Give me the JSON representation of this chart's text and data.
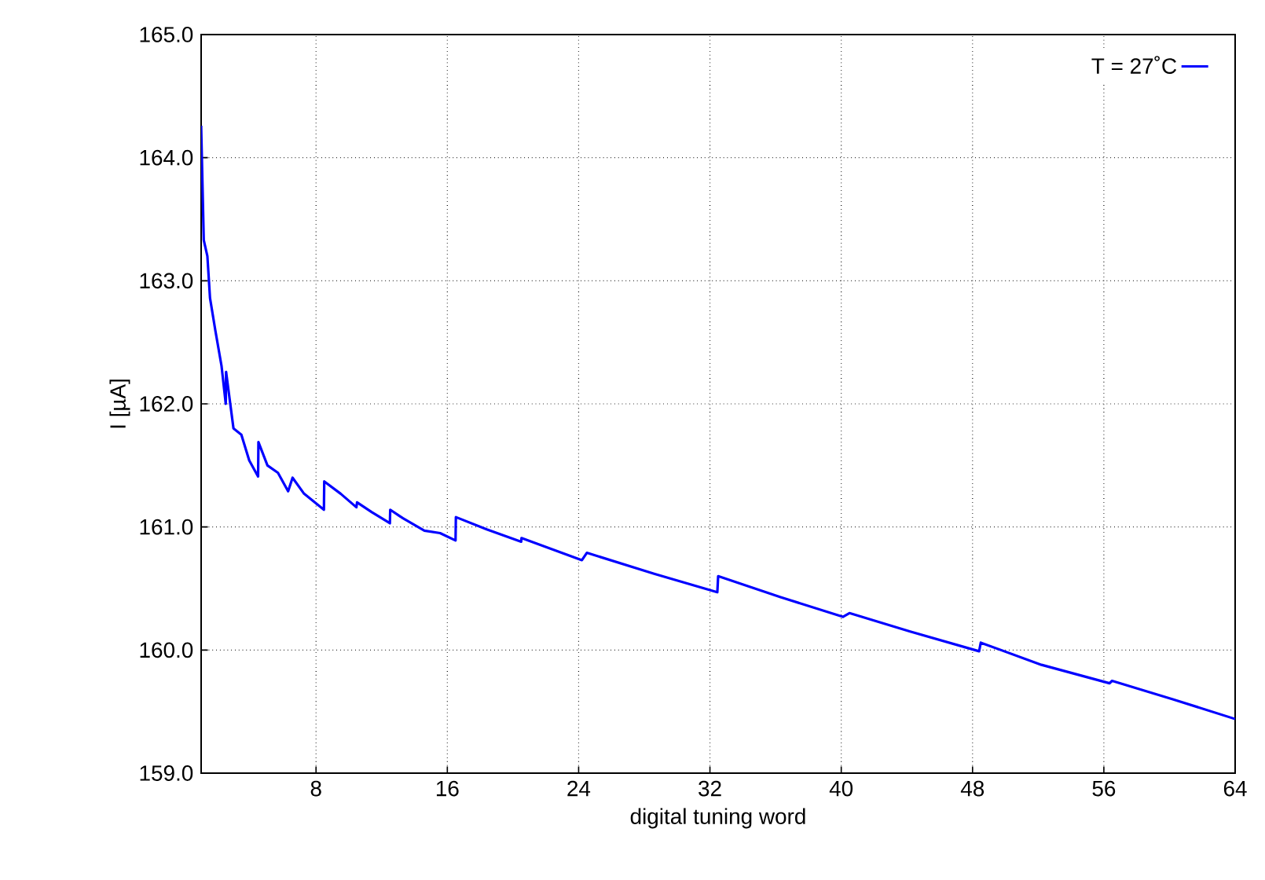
{
  "chart_data": {
    "type": "line",
    "xlabel": "digital tuning word",
    "ylabel": "I [µA]",
    "xlim": [
      1,
      64
    ],
    "ylim": [
      159,
      165
    ],
    "xticks": [
      8,
      16,
      24,
      32,
      40,
      48,
      56,
      64
    ],
    "yticks": [
      {
        "value": 159,
        "label": "159.0"
      },
      {
        "value": 160,
        "label": "160.0"
      },
      {
        "value": 161,
        "label": "161.0"
      },
      {
        "value": 162,
        "label": "162.0"
      },
      {
        "value": 163,
        "label": "163.0"
      },
      {
        "value": 164,
        "label": "164.0"
      },
      {
        "value": 165,
        "label": "165.0"
      }
    ],
    "grid": true,
    "legend": "top right",
    "series": [
      {
        "name": "T = 27˚C",
        "color": "#0000ff",
        "x": [
          1,
          1.16,
          1.38,
          1.54,
          1.86,
          2.24,
          2.5,
          2.52,
          2.97,
          3.45,
          3.93,
          4.47,
          4.49,
          5.04,
          5.68,
          6.3,
          6.57,
          7.27,
          8.48,
          8.5,
          9.5,
          10.46,
          10.5,
          11.4,
          12.5,
          12.52,
          13.3,
          14.6,
          15.56,
          16.5,
          16.52,
          18.4,
          20.5,
          20.52,
          24.2,
          24.5,
          28.6,
          32.45,
          32.5,
          36.3,
          40.1,
          40.5,
          44.2,
          48.4,
          48.5,
          52.2,
          56.35,
          56.5,
          60.2,
          64
        ],
        "values": [
          164.26,
          163.33,
          163.2,
          162.86,
          162.6,
          162.31,
          162.0,
          162.26,
          161.8,
          161.75,
          161.54,
          161.41,
          161.69,
          161.5,
          161.44,
          161.29,
          161.4,
          161.27,
          161.14,
          161.37,
          161.27,
          161.16,
          161.2,
          161.12,
          161.03,
          161.14,
          161.07,
          160.97,
          160.95,
          160.89,
          161.08,
          160.98,
          160.88,
          160.91,
          160.73,
          160.79,
          160.62,
          160.47,
          160.6,
          160.43,
          160.27,
          160.3,
          160.15,
          159.99,
          160.06,
          159.88,
          159.73,
          159.75,
          159.6,
          159.44
        ]
      }
    ]
  }
}
